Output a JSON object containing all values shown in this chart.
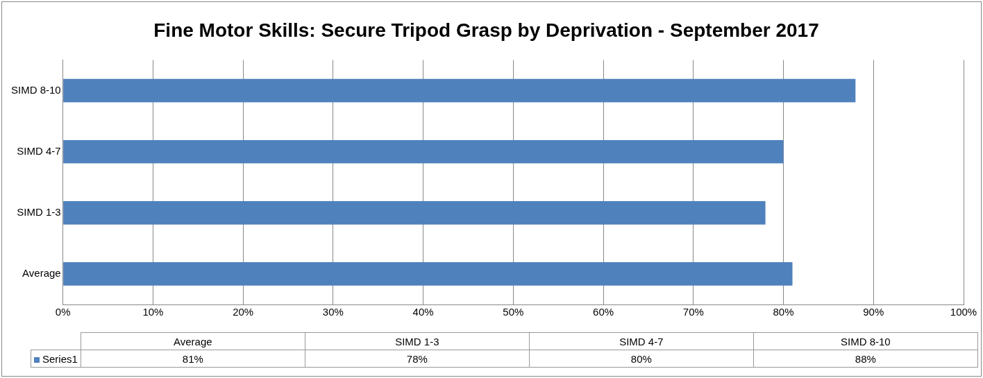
{
  "chart_data": {
    "type": "bar",
    "orientation": "horizontal",
    "title": "Fine Motor Skills: Secure Tripod Grasp by Deprivation - September 2017",
    "categories": [
      "SIMD 8-10",
      "SIMD 4-7",
      "SIMD 1-3",
      "Average"
    ],
    "series": [
      {
        "name": "Series1",
        "color": "#4f81bd",
        "values": [
          88,
          80,
          78,
          81
        ]
      }
    ],
    "value_labels": [
      "88%",
      "80%",
      "78%",
      "81%"
    ],
    "xlim": [
      0,
      100
    ],
    "xticks": [
      {
        "value": 0,
        "label": "0%"
      },
      {
        "value": 10,
        "label": "10%"
      },
      {
        "value": 20,
        "label": "20%"
      },
      {
        "value": 30,
        "label": "30%"
      },
      {
        "value": 40,
        "label": "40%"
      },
      {
        "value": 50,
        "label": "50%"
      },
      {
        "value": 60,
        "label": "60%"
      },
      {
        "value": 70,
        "label": "70%"
      },
      {
        "value": 80,
        "label": "80%"
      },
      {
        "value": 90,
        "label": "90%"
      },
      {
        "value": 100,
        "label": "100%"
      }
    ],
    "grid": "x",
    "legend": "bottom"
  }
}
